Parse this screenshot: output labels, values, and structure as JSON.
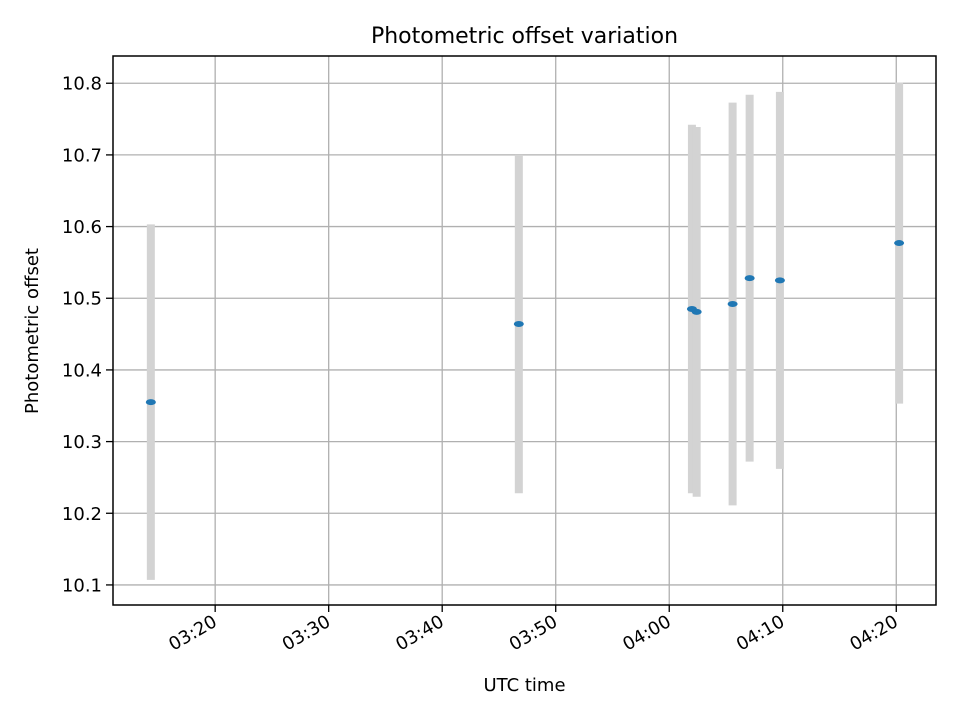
{
  "colors": {
    "marker": "#1f77b4",
    "errorbar": "#d3d3d3",
    "grid": "#b0b0b0",
    "axes": "#000000"
  },
  "chart_data": {
    "type": "scatter",
    "title": "Photometric offset variation",
    "xlabel": "UTC time",
    "ylabel": "Photometric offset",
    "x_ticks": [
      "03:20",
      "03:30",
      "03:40",
      "03:50",
      "04:00",
      "04:10",
      "04:20"
    ],
    "y_ticks": [
      "10.1",
      "10.2",
      "10.3",
      "10.4",
      "10.5",
      "10.6",
      "10.7",
      "10.8"
    ],
    "xlim": [
      "03:11:00",
      "04:23:30"
    ],
    "ylim": [
      10.072,
      10.838
    ],
    "grid": true,
    "series": [
      {
        "points": [
          {
            "x": "03:14:20",
            "y": 10.355,
            "yerr_low": 10.107,
            "yerr_high": 10.603
          },
          {
            "x": "03:46:45",
            "y": 10.464,
            "yerr_low": 10.228,
            "yerr_high": 10.7
          },
          {
            "x": "04:02:00",
            "y": 10.485,
            "yerr_low": 10.228,
            "yerr_high": 10.742
          },
          {
            "x": "04:02:25",
            "y": 10.481,
            "yerr_low": 10.223,
            "yerr_high": 10.739
          },
          {
            "x": "04:05:35",
            "y": 10.492,
            "yerr_low": 10.211,
            "yerr_high": 10.773
          },
          {
            "x": "04:07:05",
            "y": 10.528,
            "yerr_low": 10.272,
            "yerr_high": 10.784
          },
          {
            "x": "04:09:45",
            "y": 10.525,
            "yerr_low": 10.262,
            "yerr_high": 10.788
          },
          {
            "x": "04:20:15",
            "y": 10.577,
            "yerr_low": 10.353,
            "yerr_high": 10.801
          }
        ]
      }
    ]
  }
}
